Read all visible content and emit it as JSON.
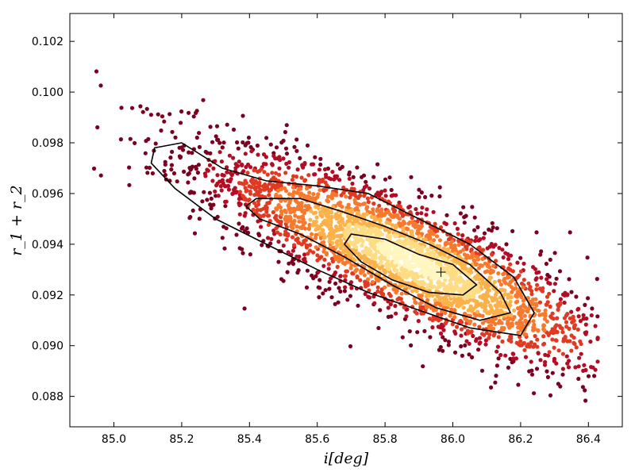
{
  "chart_data": {
    "type": "scatter",
    "title": "",
    "xlabel": "i[deg]",
    "ylabel": "r_1 + r_2",
    "xlim": [
      84.87,
      86.5
    ],
    "ylim": [
      0.0868,
      0.1031
    ],
    "x_ticks": [
      85.0,
      85.2,
      85.4,
      85.6,
      85.8,
      86.0,
      86.2,
      86.4
    ],
    "y_ticks": [
      0.088,
      0.09,
      0.092,
      0.094,
      0.096,
      0.098,
      0.1,
      0.102
    ],
    "x_tick_labels": [
      "85.0",
      "85.2",
      "85.4",
      "85.6",
      "85.8",
      "86.0",
      "86.2",
      "86.4"
    ],
    "y_tick_labels": [
      "0.088",
      "0.090",
      "0.092",
      "0.094",
      "0.096",
      "0.098",
      "0.100",
      "0.102"
    ],
    "grid": false,
    "legend": "none",
    "colormap": [
      "#7a0220",
      "#b10e26",
      "#e03a22",
      "#f7792e",
      "#fcb24a",
      "#fedc84",
      "#fff6c0"
    ],
    "best_fit": {
      "x": 85.965,
      "y": 0.0929
    },
    "point_cloud": {
      "center": [
        85.85,
        0.0935
      ],
      "slope": -0.006,
      "count": 3200,
      "description_note": ""
    },
    "contours": [
      {
        "level": "inner",
        "points": [
          [
            85.7,
            0.0944
          ],
          [
            85.8,
            0.0942
          ],
          [
            85.9,
            0.0936
          ],
          [
            86.0,
            0.0932
          ],
          [
            86.07,
            0.0924
          ],
          [
            86.03,
            0.092
          ],
          [
            85.93,
            0.0921
          ],
          [
            85.82,
            0.0926
          ],
          [
            85.73,
            0.0933
          ],
          [
            85.68,
            0.094
          ]
        ]
      },
      {
        "level": "middle",
        "points": [
          [
            85.42,
            0.0958
          ],
          [
            85.55,
            0.0958
          ],
          [
            85.67,
            0.0953
          ],
          [
            85.8,
            0.0947
          ],
          [
            85.93,
            0.094
          ],
          [
            86.05,
            0.0932
          ],
          [
            86.14,
            0.0921
          ],
          [
            86.17,
            0.0913
          ],
          [
            86.08,
            0.091
          ],
          [
            85.95,
            0.0915
          ],
          [
            85.82,
            0.0924
          ],
          [
            85.68,
            0.0935
          ],
          [
            85.55,
            0.0944
          ],
          [
            85.43,
            0.095
          ],
          [
            85.39,
            0.0955
          ]
        ]
      },
      {
        "level": "outer",
        "points": [
          [
            85.12,
            0.0978
          ],
          [
            85.2,
            0.098
          ],
          [
            85.32,
            0.097
          ],
          [
            85.45,
            0.0965
          ],
          [
            85.6,
            0.0963
          ],
          [
            85.75,
            0.096
          ],
          [
            85.9,
            0.095
          ],
          [
            86.05,
            0.094
          ],
          [
            86.18,
            0.0927
          ],
          [
            86.24,
            0.0913
          ],
          [
            86.2,
            0.0904
          ],
          [
            86.05,
            0.0907
          ],
          [
            85.9,
            0.0914
          ],
          [
            85.75,
            0.0921
          ],
          [
            85.6,
            0.093
          ],
          [
            85.45,
            0.094
          ],
          [
            85.3,
            0.095
          ],
          [
            85.18,
            0.0962
          ],
          [
            85.11,
            0.0972
          ]
        ]
      }
    ]
  }
}
